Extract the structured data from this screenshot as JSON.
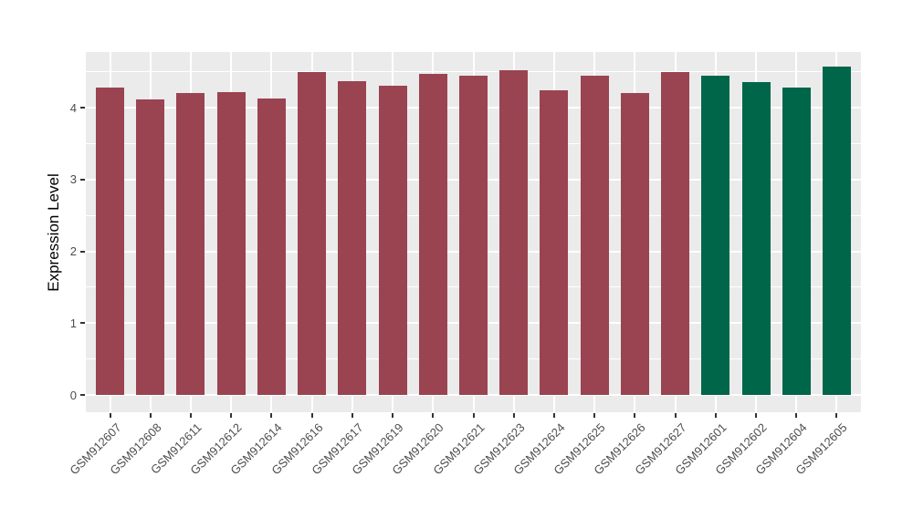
{
  "chart_data": {
    "type": "bar",
    "title": "",
    "xlabel": "",
    "ylabel": "Expression Level",
    "categories": [
      "GSM912607",
      "GSM912608",
      "GSM912611",
      "GSM912612",
      "GSM912614",
      "GSM912616",
      "GSM912617",
      "GSM912619",
      "GSM912620",
      "GSM912621",
      "GSM912623",
      "GSM912624",
      "GSM912625",
      "GSM912626",
      "GSM912627",
      "GSM912601",
      "GSM912602",
      "GSM912604",
      "GSM912605"
    ],
    "values": [
      4.28,
      4.12,
      4.2,
      4.21,
      4.13,
      4.5,
      4.37,
      4.3,
      4.47,
      4.45,
      4.52,
      4.24,
      4.45,
      4.2,
      4.5,
      4.44,
      4.36,
      4.28,
      4.57
    ],
    "bar_groups": [
      0,
      0,
      0,
      0,
      0,
      0,
      0,
      0,
      0,
      0,
      0,
      0,
      0,
      0,
      0,
      1,
      1,
      1,
      1
    ],
    "group_colors": [
      "#9A4351",
      "#00664A"
    ],
    "yticks": [
      0,
      1,
      2,
      3,
      4
    ],
    "yticks_minor": [
      0.5,
      1.5,
      2.5,
      3.5,
      4.5
    ],
    "ylim": [
      -0.24,
      4.78
    ],
    "grid": true,
    "legend_position": "none",
    "panel_background": "#EBEBEB",
    "gridline_color": "#FFFFFF",
    "axis_text_color": "#4d4d4d",
    "tick_mark_color": "#333333"
  }
}
